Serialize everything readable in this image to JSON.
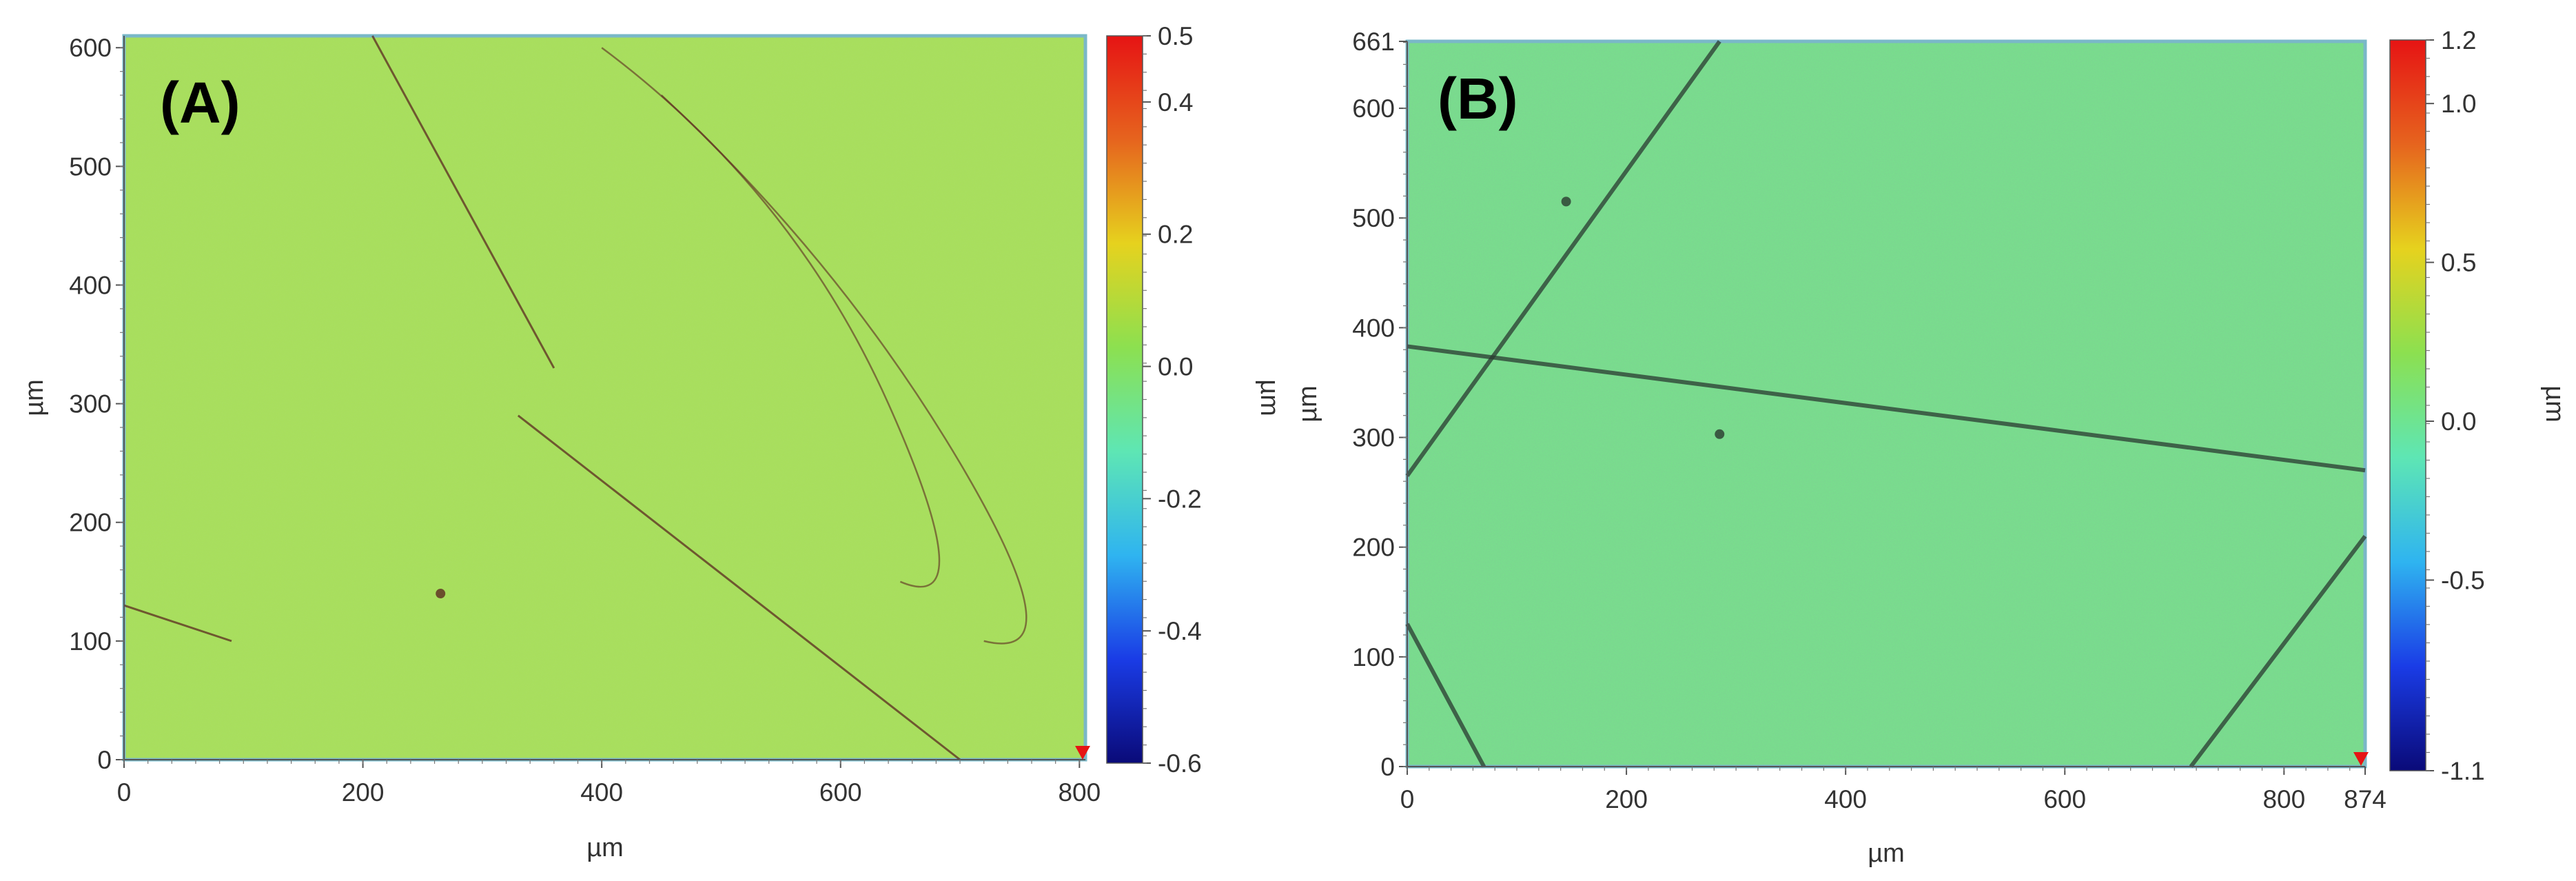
{
  "figure": {
    "panels": [
      {
        "panel_label": "(A)",
        "x_label": "µm",
        "y_label": "µm",
        "colorbar_label": "µm",
        "x_tick_labels": [
          "0",
          "200",
          "400",
          "600",
          "800"
        ],
        "y_tick_labels": [
          "0",
          "100",
          "200",
          "300",
          "400",
          "500",
          "600"
        ],
        "colorbar_tick_labels": [
          "0.5",
          "0.4",
          "0.2",
          "0.0",
          "-0.2",
          "-0.4",
          "-0.6"
        ]
      },
      {
        "panel_label": "(B)",
        "x_label": "µm",
        "y_label": "µm",
        "colorbar_label": "µm",
        "x_tick_labels": [
          "0",
          "200",
          "400",
          "600",
          "800",
          "874"
        ],
        "y_tick_labels": [
          "0",
          "100",
          "200",
          "300",
          "400",
          "500",
          "600",
          "661"
        ],
        "colorbar_tick_labels": [
          "1.2",
          "1.0",
          "0.5",
          "0.0",
          "-0.5",
          "-1.1"
        ]
      }
    ]
  },
  "colors": {
    "surface_a": "#a8e05a",
    "surface_b": "#78e08c",
    "scratch": "#5b2a20",
    "scratch_b": "#2a3a30",
    "colorbar_stops": [
      "#0a0a78",
      "#1a3ce6",
      "#2fb4f0",
      "#5ee6b4",
      "#8ce050",
      "#e6d21e",
      "#e6641e",
      "#e61414"
    ]
  },
  "chart_data": [
    {
      "type": "heatmap",
      "title": "",
      "panel_label": "(A)",
      "xlabel": "µm",
      "ylabel": "µm",
      "xlim": [
        0,
        805
      ],
      "ylim": [
        0,
        610
      ],
      "x_ticks": [
        0,
        200,
        400,
        600,
        800
      ],
      "y_ticks": [
        0,
        100,
        200,
        300,
        400,
        500,
        600
      ],
      "colorbar": {
        "label": "µm",
        "range": [
          -0.6,
          0.5
        ],
        "ticks": [
          0.5,
          0.4,
          0.2,
          0.0,
          -0.2,
          -0.4,
          -0.6
        ]
      },
      "dominant_value": 0.05,
      "features": [
        {
          "kind": "line",
          "from": [
            208,
            610
          ],
          "to": [
            360,
            330
          ]
        },
        {
          "kind": "line",
          "from": [
            330,
            290
          ],
          "to": [
            700,
            0
          ]
        },
        {
          "kind": "arc",
          "through": [
            [
              400,
              600
            ],
            [
              560,
              480
            ],
            [
              640,
              300
            ],
            [
              650,
              150
            ]
          ]
        },
        {
          "kind": "arc",
          "through": [
            [
              450,
              560
            ],
            [
              600,
              420
            ],
            [
              700,
              250
            ],
            [
              720,
              100
            ]
          ]
        },
        {
          "kind": "line",
          "from": [
            0,
            130
          ],
          "to": [
            90,
            100
          ]
        },
        {
          "kind": "spot",
          "at": [
            265,
            140
          ]
        }
      ],
      "grid": false
    },
    {
      "type": "heatmap",
      "title": "",
      "panel_label": "(B)",
      "xlabel": "µm",
      "ylabel": "µm",
      "xlim": [
        0,
        874
      ],
      "ylim": [
        0,
        661
      ],
      "x_ticks": [
        0,
        200,
        400,
        600,
        800,
        874
      ],
      "y_ticks": [
        0,
        100,
        200,
        300,
        400,
        500,
        600,
        661
      ],
      "colorbar": {
        "label": "µm",
        "range": [
          -1.1,
          1.2
        ],
        "ticks": [
          1.2,
          1.0,
          0.5,
          0.0,
          -0.5,
          -1.1
        ]
      },
      "dominant_value": 0.1,
      "features": [
        {
          "kind": "line",
          "from": [
            285,
            661
          ],
          "to": [
            0,
            265
          ]
        },
        {
          "kind": "line",
          "from": [
            0,
            383
          ],
          "to": [
            874,
            270
          ]
        },
        {
          "kind": "line",
          "from": [
            874,
            210
          ],
          "to": [
            715,
            0
          ]
        },
        {
          "kind": "line",
          "from": [
            0,
            130
          ],
          "to": [
            70,
            0
          ]
        },
        {
          "kind": "spot",
          "at": [
            145,
            515
          ]
        },
        {
          "kind": "spot",
          "at": [
            285,
            303
          ]
        }
      ],
      "grid": false
    }
  ]
}
